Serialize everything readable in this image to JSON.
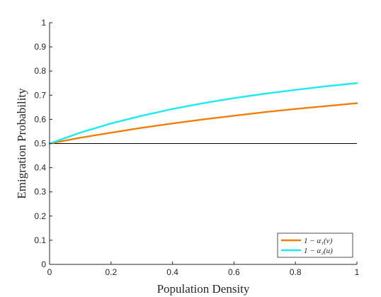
{
  "chart_data": {
    "type": "line",
    "title": "",
    "xlabel": "Population Density",
    "ylabel": "Emigration Probability",
    "xlim": [
      0,
      1
    ],
    "ylim": [
      0,
      1
    ],
    "xticks": [
      0,
      0.2,
      0.4,
      0.6,
      0.8,
      1
    ],
    "xtick_labels": [
      "0",
      "0.2",
      "0.4",
      "0.6",
      "0.8",
      "1"
    ],
    "yticks": [
      0,
      0.1,
      0.2,
      0.3,
      0.4,
      0.5,
      0.6,
      0.7,
      0.8,
      0.9,
      1
    ],
    "ytick_labels": [
      "0",
      "0.1",
      "0.2",
      "0.3",
      "0.4",
      "0.5",
      "0.6",
      "0.7",
      "0.8",
      "0.9",
      "1"
    ],
    "grid": false,
    "legend_position": "bottom-right",
    "reference_line": {
      "y": 0.5,
      "color": "#000000"
    },
    "x": [
      0,
      0.1,
      0.2,
      0.3,
      0.4,
      0.5,
      0.6,
      0.7,
      0.8,
      0.9,
      1
    ],
    "series": [
      {
        "name": "1 − α₁(v)",
        "color": "#f07f09",
        "values": [
          0.5,
          0.524,
          0.545,
          0.565,
          0.583,
          0.6,
          0.615,
          0.63,
          0.643,
          0.655,
          0.667
        ]
      },
      {
        "name": "1 − α₂(u)",
        "color": "#1de9f0",
        "values": [
          0.5,
          0.545,
          0.583,
          0.615,
          0.643,
          0.667,
          0.688,
          0.706,
          0.722,
          0.737,
          0.75
        ]
      }
    ]
  }
}
